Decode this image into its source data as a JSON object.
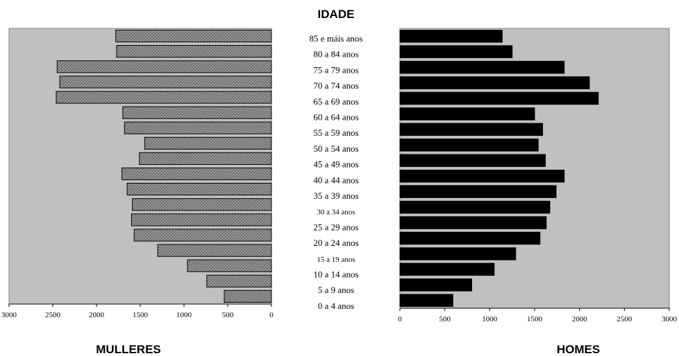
{
  "chart_data": {
    "type": "bar",
    "title": "IDADE",
    "categories": [
      "85 e máis anos",
      "80 a 84 anos",
      "75 a 79 anos",
      "70 a 74 anos",
      "65 a 69 anos",
      "60 a 64 anos",
      "55 a 59 anos",
      "50 a 54 anos",
      "45 a 49 anos",
      "40 a 44 anos",
      "35 a 39 anos",
      "30 a 34 anos",
      "25 a 29 anos",
      "20 a 24 anos",
      "15 a 19 anos",
      "10 a 14 anos",
      "5 a 9 anos",
      "0 a 4 anos"
    ],
    "small_categories": [
      "30 a 34 anos",
      "15 a 19 anos"
    ],
    "series": [
      {
        "name": "MULLERES",
        "values": [
          1780,
          1770,
          2450,
          2420,
          2460,
          1700,
          1680,
          1450,
          1510,
          1710,
          1650,
          1590,
          1600,
          1570,
          1300,
          960,
          740,
          540
        ],
        "color": "#808080",
        "pattern": "hatched",
        "xlim": [
          3000,
          0
        ],
        "ticks": [
          "3000",
          "2500",
          "2000",
          "1500",
          "1000",
          "500",
          "0"
        ]
      },
      {
        "name": "HOMES",
        "values": [
          1140,
          1250,
          1830,
          2110,
          2210,
          1500,
          1590,
          1540,
          1620,
          1830,
          1740,
          1670,
          1630,
          1560,
          1290,
          1050,
          800,
          590
        ],
        "color": "#000000",
        "pattern": "solid",
        "xlim": [
          0,
          3000
        ],
        "ticks": [
          "0",
          "500",
          "1000",
          "1500",
          "2000",
          "2500",
          "3000"
        ]
      }
    ],
    "plot_background": "#c0c0c0",
    "grid": false,
    "legend": "none"
  }
}
